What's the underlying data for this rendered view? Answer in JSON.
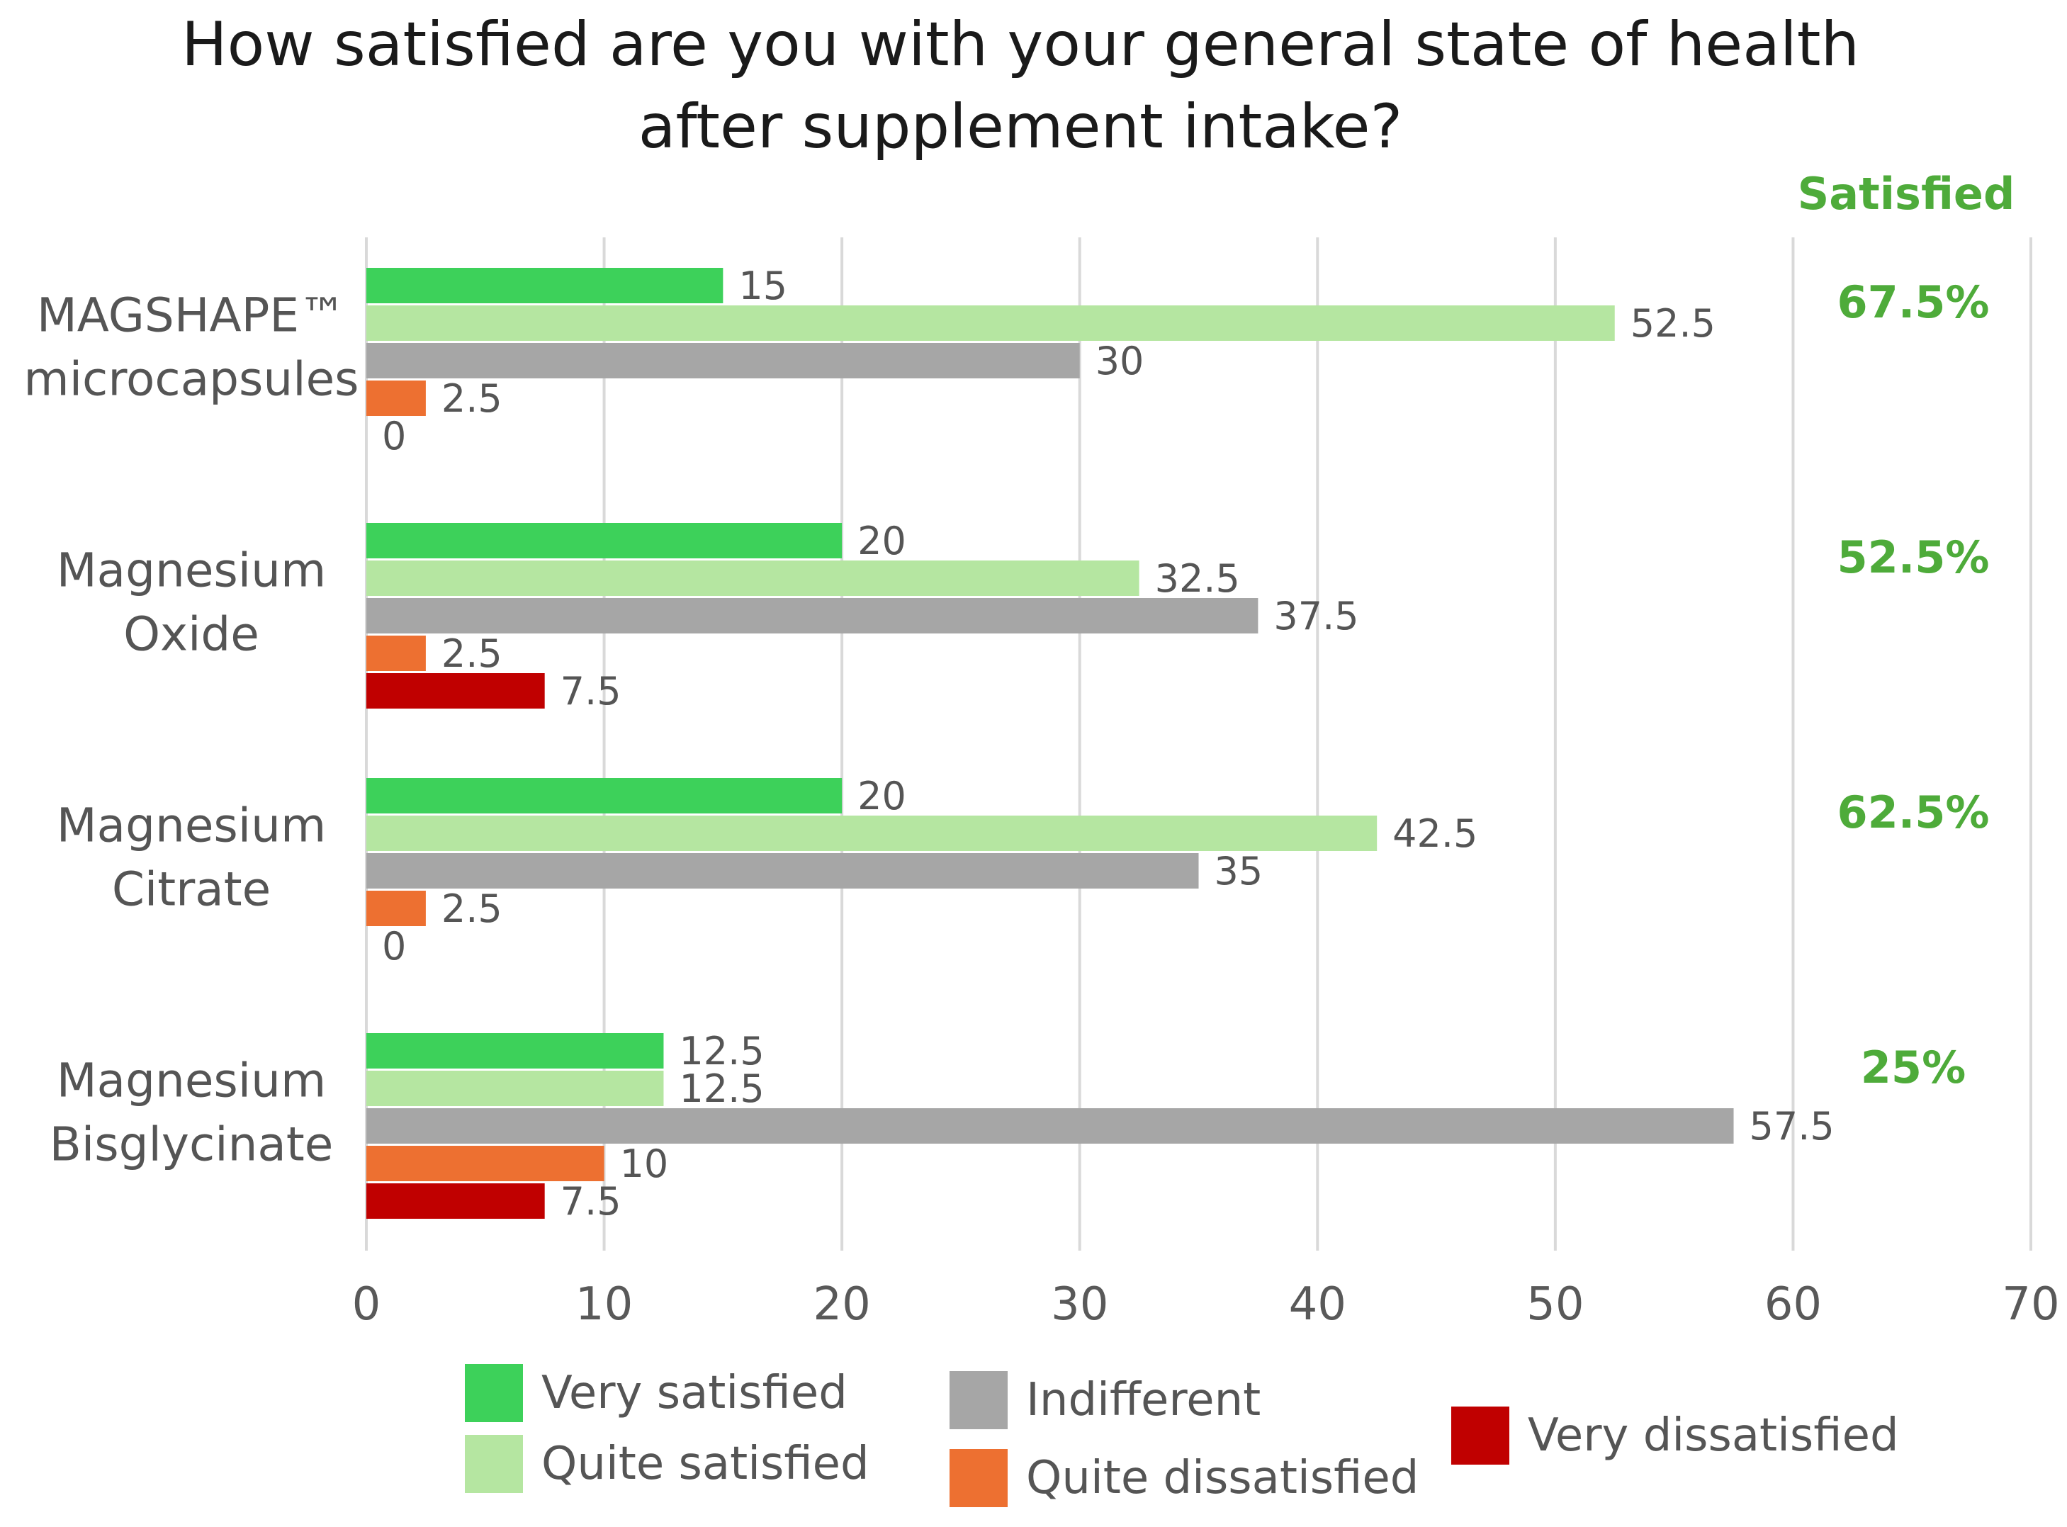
{
  "chart_data": {
    "type": "bar",
    "orientation": "horizontal",
    "title_lines": [
      "How satisfied are you with your general state of health",
      "after supplement intake?"
    ],
    "categories": [
      [
        "MAGSHAPE™",
        "microcapsules"
      ],
      [
        "Magnesium",
        "Oxide"
      ],
      [
        "Magnesium",
        "Citrate"
      ],
      [
        "Magnesium",
        "Bisglycinate"
      ]
    ],
    "series": [
      {
        "name": "Very satisfied",
        "color": "#3dd15a",
        "values": [
          15,
          20,
          20,
          12.5
        ],
        "labels": [
          "15",
          "20",
          "20",
          "12.5"
        ]
      },
      {
        "name": "Quite satisfied",
        "color": "#b5e6a1",
        "values": [
          52.5,
          32.5,
          42.5,
          12.5
        ],
        "labels": [
          "52.5",
          "32.5",
          "42.5",
          "12.5"
        ]
      },
      {
        "name": "Indifferent",
        "color": "#a6a6a6",
        "values": [
          30,
          37.5,
          35,
          57.5
        ],
        "labels": [
          "30",
          "37.5",
          "35",
          "57.5"
        ]
      },
      {
        "name": "Quite dissatisfied",
        "color": "#ed7031",
        "values": [
          2.5,
          2.5,
          2.5,
          10
        ],
        "labels": [
          "2.5",
          "2.5",
          "2.5",
          "10"
        ]
      },
      {
        "name": "Very dissatisfied",
        "color": "#c00000",
        "values": [
          0,
          7.5,
          0,
          7.5
        ],
        "labels": [
          "0",
          "7.5",
          "0",
          "7.5"
        ]
      }
    ],
    "xlim": [
      0,
      70
    ],
    "xticks": [
      "0",
      "10",
      "20",
      "30",
      "40",
      "50",
      "60",
      "70"
    ],
    "grid": true,
    "satisfied_header": "Satisfied",
    "satisfied": [
      "67.5%",
      "52.5%",
      "62.5%",
      "25%"
    ],
    "legend": "bottom"
  }
}
